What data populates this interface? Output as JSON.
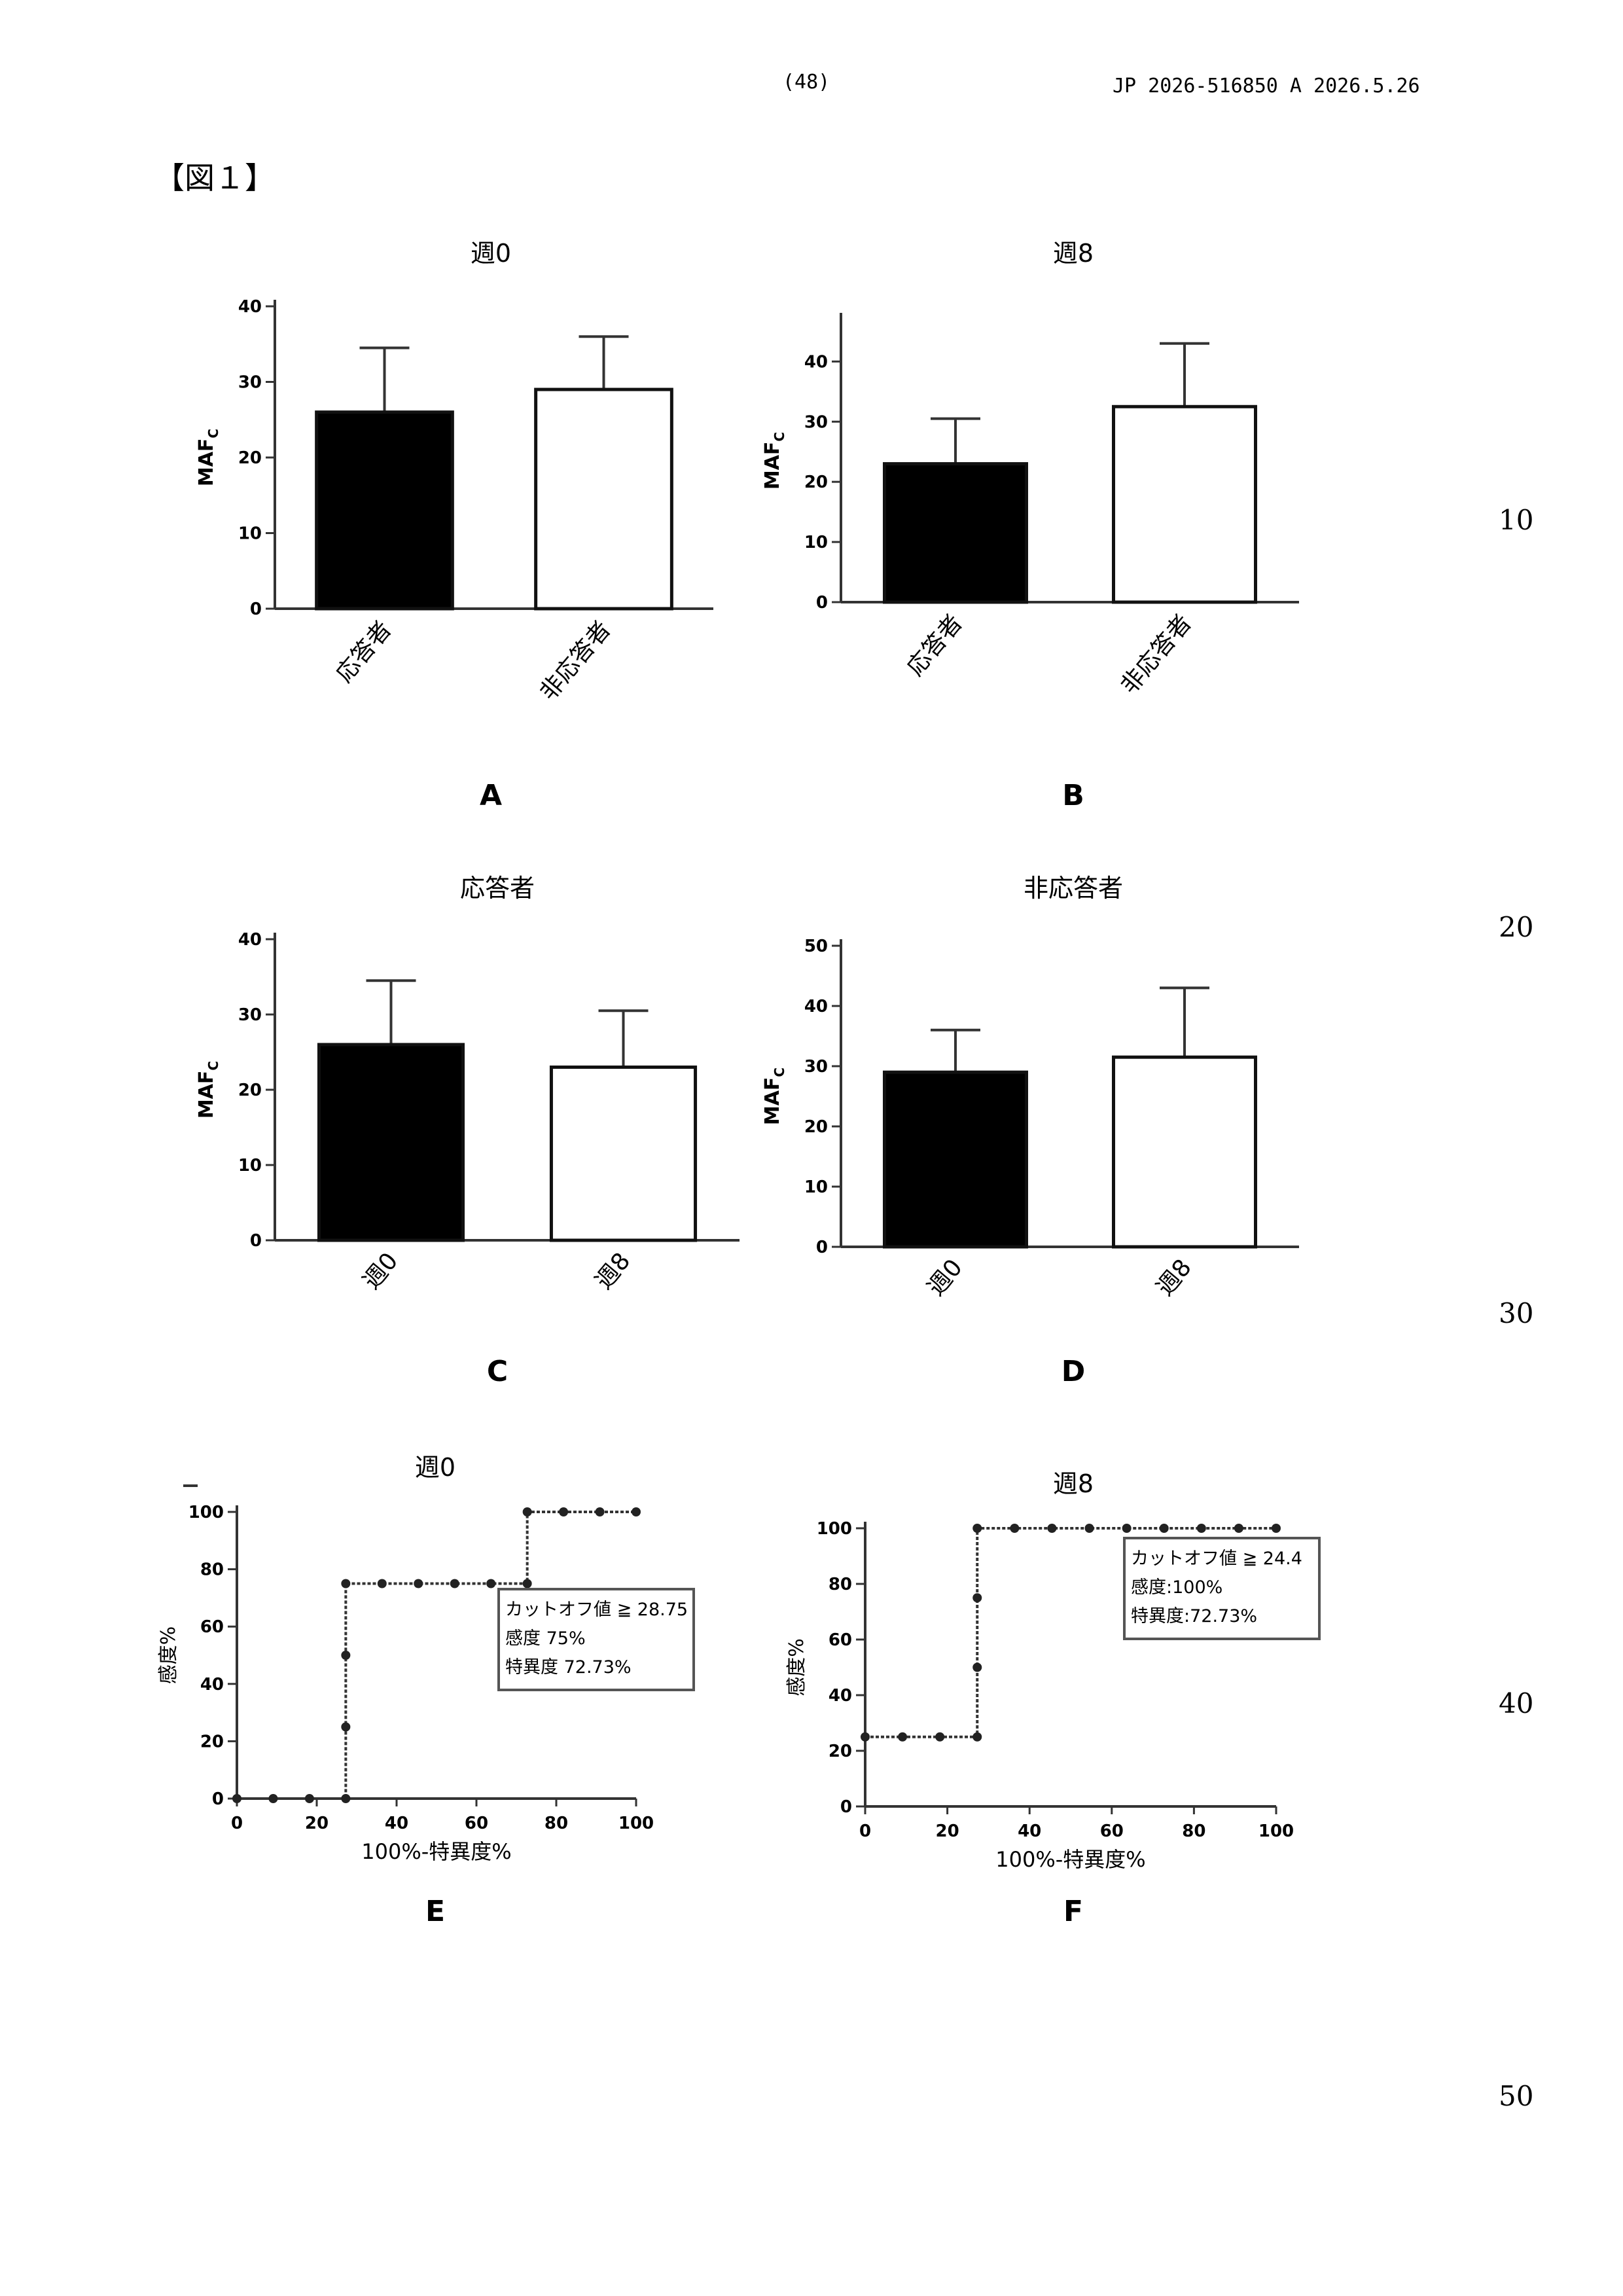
{
  "header": {
    "page_number": "(48)",
    "publication": "JP  2026-516850  A  2026.5.26"
  },
  "figure_label": "【図１】",
  "line_numbers": [
    "10",
    "20",
    "30",
    "40",
    "50"
  ],
  "chart_data": [
    {
      "id": "A",
      "panel_letter": "A",
      "type": "bar",
      "title": "週0",
      "ylabel": "MAF",
      "ylabel_sub": "C",
      "ylim": [
        0,
        40
      ],
      "yticks": [
        0,
        10,
        20,
        30,
        40
      ],
      "categories": [
        "応答者",
        "非応答者"
      ],
      "values": [
        26,
        29
      ],
      "errors": [
        8.5,
        7
      ],
      "fills": [
        "#000000",
        "#ffffff"
      ]
    },
    {
      "id": "B",
      "panel_letter": "B",
      "type": "bar",
      "title": "週8",
      "ylabel": "MAF",
      "ylabel_sub": "C",
      "ylim": [
        0,
        47
      ],
      "yticks": [
        0,
        10,
        20,
        30,
        40
      ],
      "categories": [
        "応答者",
        "非応答者"
      ],
      "values": [
        23,
        32.5
      ],
      "errors": [
        7.5,
        10.5
      ],
      "fills": [
        "#000000",
        "#ffffff"
      ]
    },
    {
      "id": "C",
      "panel_letter": "C",
      "type": "bar",
      "title": "応答者",
      "ylabel": "MAF",
      "ylabel_sub": "C",
      "ylim": [
        0,
        40
      ],
      "yticks": [
        0,
        10,
        20,
        30,
        40
      ],
      "categories": [
        "週0",
        "週8"
      ],
      "values": [
        26,
        23
      ],
      "errors": [
        8.5,
        7.5
      ],
      "fills": [
        "#000000",
        "#ffffff"
      ]
    },
    {
      "id": "D",
      "panel_letter": "D",
      "type": "bar",
      "title": "非応答者",
      "ylabel": "MAF",
      "ylabel_sub": "C",
      "ylim": [
        0,
        50
      ],
      "yticks": [
        0,
        10,
        20,
        30,
        40,
        50
      ],
      "categories": [
        "週0",
        "週8"
      ],
      "values": [
        29,
        31.5
      ],
      "errors": [
        7,
        11.5
      ],
      "fills": [
        "#000000",
        "#ffffff"
      ]
    },
    {
      "id": "E",
      "panel_letter": "E",
      "type": "line",
      "title": "週0",
      "xlabel": "100%-特異度%",
      "ylabel": "感度%",
      "xlim": [
        0,
        100
      ],
      "ylim": [
        0,
        100
      ],
      "xticks": [
        0,
        20,
        40,
        60,
        80,
        100
      ],
      "yticks": [
        0,
        20,
        40,
        60,
        80,
        100
      ],
      "points": [
        [
          0,
          0
        ],
        [
          9.09,
          0
        ],
        [
          18.18,
          0
        ],
        [
          27.27,
          0
        ],
        [
          27.27,
          25
        ],
        [
          27.27,
          50
        ],
        [
          27.27,
          75
        ],
        [
          36.36,
          75
        ],
        [
          45.45,
          75
        ],
        [
          54.55,
          75
        ],
        [
          63.64,
          75
        ],
        [
          72.73,
          75
        ],
        [
          72.73,
          100
        ],
        [
          81.82,
          100
        ],
        [
          90.91,
          100
        ],
        [
          100,
          100
        ]
      ],
      "annotation": [
        "カットオフ値 ≧ 28.75",
        "感度  75%",
        "特異度  72.73%"
      ]
    },
    {
      "id": "F",
      "panel_letter": "F",
      "type": "line",
      "title": "週8",
      "xlabel": "100%-特異度%",
      "ylabel": "感度%",
      "xlim": [
        0,
        100
      ],
      "ylim": [
        0,
        100
      ],
      "xticks": [
        0,
        20,
        40,
        60,
        80,
        100
      ],
      "yticks": [
        0,
        20,
        40,
        60,
        80,
        100
      ],
      "points": [
        [
          0,
          25
        ],
        [
          9.09,
          25
        ],
        [
          18.18,
          25
        ],
        [
          27.27,
          25
        ],
        [
          27.27,
          50
        ],
        [
          27.27,
          75
        ],
        [
          27.27,
          100
        ],
        [
          36.36,
          100
        ],
        [
          45.45,
          100
        ],
        [
          54.55,
          100
        ],
        [
          63.64,
          100
        ],
        [
          72.73,
          100
        ],
        [
          81.82,
          100
        ],
        [
          90.91,
          100
        ],
        [
          100,
          100
        ]
      ],
      "annotation": [
        "カットオフ値 ≧ 24.4",
        "感度:100%",
        "特異度:72.73%"
      ]
    }
  ]
}
